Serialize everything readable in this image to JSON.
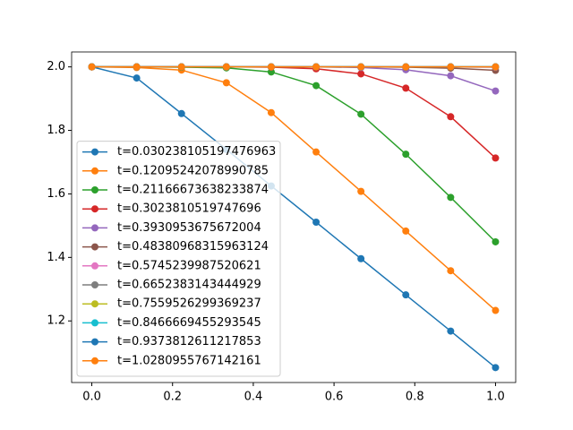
{
  "chart_data": {
    "type": "line",
    "x": [
      0,
      0.1111,
      0.2222,
      0.3333,
      0.4444,
      0.5556,
      0.6667,
      0.7778,
      0.8889,
      1
    ],
    "series": [
      {
        "name": "t=0.030238105197476963",
        "color": "#1f77b4",
        "values": [
          2.0,
          1.965,
          1.853,
          1.74,
          1.625,
          1.511,
          1.396,
          1.282,
          1.168,
          1.053
        ]
      },
      {
        "name": "t=0.12095242078990785",
        "color": "#ff7f0e",
        "values": [
          2.0,
          1.998,
          1.99,
          1.95,
          1.856,
          1.732,
          1.608,
          1.483,
          1.358,
          1.233
        ]
      },
      {
        "name": "t=0.21166673638233874",
        "color": "#2ca02c",
        "values": [
          2.0,
          2.0,
          1.999,
          1.997,
          1.984,
          1.941,
          1.851,
          1.725,
          1.589,
          1.449
        ]
      },
      {
        "name": "t=0.3023810519747696",
        "color": "#d62728",
        "values": [
          2.0,
          2.0,
          2.0,
          2.0,
          1.999,
          1.994,
          1.978,
          1.933,
          1.843,
          1.713
        ]
      },
      {
        "name": "t=0.3930953675672004",
        "color": "#9467bd",
        "values": [
          2.0,
          2.0,
          2.0,
          2.0,
          2.0,
          2.0,
          1.998,
          1.991,
          1.972,
          1.924
        ]
      },
      {
        "name": "t=0.48380968315963124",
        "color": "#8c564b",
        "values": [
          2.0,
          2.0,
          2.0,
          2.0,
          2.0,
          2.0,
          2.0,
          1.999,
          1.996,
          1.989
        ]
      },
      {
        "name": "t=0.5745239987520621",
        "color": "#e377c2",
        "values": [
          2.0,
          2.0,
          2.0,
          2.0,
          2.0,
          2.0,
          2.0,
          2.0,
          2.0,
          1.999
        ]
      },
      {
        "name": "t=0.6652383143444929",
        "color": "#7f7f7f",
        "values": [
          2.0,
          2.0,
          2.0,
          2.0,
          2.0,
          2.0,
          2.0,
          2.0,
          2.0,
          2.0
        ]
      },
      {
        "name": "t=0.7559526299369237",
        "color": "#bcbd22",
        "values": [
          2.0,
          2.0,
          2.0,
          2.0,
          2.0,
          2.0,
          2.0,
          2.0,
          2.0,
          2.0
        ]
      },
      {
        "name": "t=0.8466669455293545",
        "color": "#17becf",
        "values": [
          2.0,
          2.0,
          2.0,
          2.0,
          2.0,
          2.0,
          2.0,
          2.0,
          2.0,
          2.0
        ]
      },
      {
        "name": "t=0.9373812611217853",
        "color": "#1f77b4",
        "values": [
          2.0,
          2.0,
          2.0,
          2.0,
          2.0,
          2.0,
          2.0,
          2.0,
          2.0,
          2.0
        ]
      },
      {
        "name": "t=1.0280955767142161",
        "color": "#ff7f0e",
        "values": [
          2.0,
          2.0,
          2.0,
          2.0,
          2.0,
          2.0,
          2.0,
          2.0,
          2.0,
          2.0
        ]
      }
    ],
    "xlim": [
      -0.05,
      1.05
    ],
    "xticks": [
      {
        "value": 0,
        "label": "0.0"
      },
      0.2,
      0.4,
      0.6,
      0.8,
      {
        "value": 1,
        "label": "1.0"
      }
    ],
    "ylim": [
      1.006,
      2.047
    ],
    "yticks": [
      1.2,
      1.4,
      1.6,
      1.8,
      {
        "value": 2,
        "label": "2.0"
      }
    ],
    "legend": "lower left"
  }
}
